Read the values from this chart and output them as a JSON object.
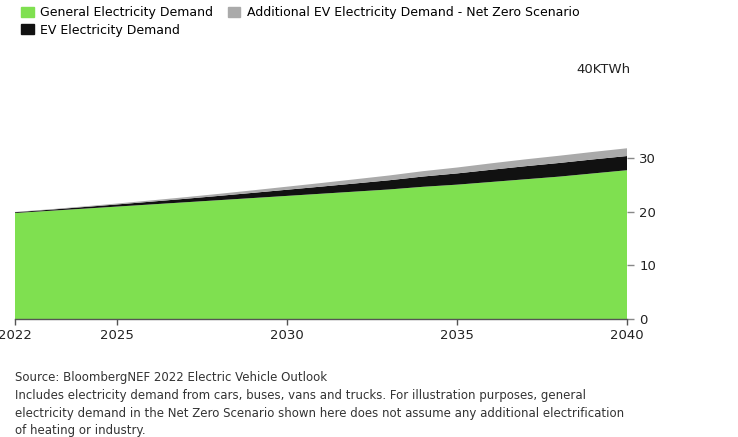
{
  "years": [
    2022,
    2023,
    2024,
    2025,
    2026,
    2027,
    2028,
    2029,
    2030,
    2031,
    2032,
    2033,
    2034,
    2035,
    2036,
    2037,
    2038,
    2039,
    2040
  ],
  "general_demand": [
    19.8,
    20.2,
    20.6,
    21.0,
    21.4,
    21.8,
    22.2,
    22.6,
    23.0,
    23.4,
    23.8,
    24.2,
    24.7,
    25.1,
    25.6,
    26.1,
    26.6,
    27.2,
    27.8
  ],
  "ev_demand": [
    0.15,
    0.2,
    0.3,
    0.4,
    0.52,
    0.65,
    0.8,
    0.97,
    1.15,
    1.33,
    1.52,
    1.72,
    1.92,
    2.1,
    2.28,
    2.44,
    2.55,
    2.62,
    2.65
  ],
  "netzero_extra": [
    0.05,
    0.08,
    0.12,
    0.17,
    0.23,
    0.3,
    0.38,
    0.47,
    0.57,
    0.67,
    0.78,
    0.89,
    1.0,
    1.1,
    1.2,
    1.28,
    1.35,
    1.4,
    1.45
  ],
  "general_color": "#7FE050",
  "ev_color": "#111111",
  "netzero_color": "#AAAAAA",
  "legend_labels": [
    "General Electricity Demand",
    "EV Electricity Demand",
    "Additional EV Electricity Demand - Net Zero Scenario"
  ],
  "ylabel": "40KTWh",
  "yticks": [
    0,
    10,
    20,
    30
  ],
  "xlim": [
    2022,
    2040
  ],
  "ylim": [
    0,
    40
  ],
  "source_line1": "Source: BloombergNEF 2022 Electric Vehicle Outlook",
  "source_line2": "Includes electricity demand from cars, buses, vans and trucks. For illustration purposes, general",
  "source_line3": "electricity demand in the Net Zero Scenario shown here does not assume any additional electrification",
  "source_line4": "of heating or industry.",
  "bg_color": "#FFFFFF",
  "legend_fontsize": 9,
  "source_fontsize": 8.5,
  "axis_fontsize": 9.5
}
